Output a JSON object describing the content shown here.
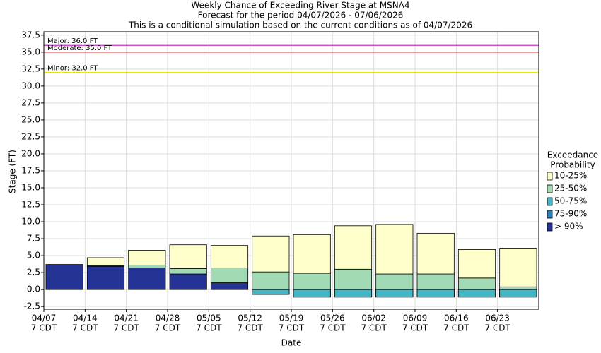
{
  "chart_data": {
    "type": "floating-bar",
    "title": [
      "Weekly Chance of Exceeding River Stage at MSNA4",
      "Forecast for the period 04/07/2026 - 07/06/2026",
      "This is a conditional simulation based on the current conditions as of 04/07/2026"
    ],
    "y_label": "Stage (FT)",
    "x_label": "Date",
    "categories": [
      "04/07",
      "04/14",
      "04/21",
      "04/28",
      "05/05",
      "05/12",
      "05/19",
      "05/26",
      "06/02",
      "06/09",
      "06/16",
      "06/23"
    ],
    "category_sublabels": [
      "7 CDT",
      "7 CDT",
      "7 CDT",
      "7 CDT",
      "7 CDT",
      "7 CDT",
      "7 CDT",
      "7 CDT",
      "7 CDT",
      "7 CDT",
      "7 CDT",
      "7 CDT"
    ],
    "series": [
      {
        "name": "> 90%",
        "color": "#253494",
        "values": [
          3.7,
          3.4,
          3.2,
          2.3,
          1.0,
          -0.7,
          -1.1,
          -1.1,
          -1.1,
          -1.1,
          -1.1,
          -1.1
        ]
      },
      {
        "name": "75-90%",
        "color": "#2c7fb8",
        "values": [
          3.7,
          3.4,
          3.2,
          2.3,
          1.0,
          -0.7,
          -1.1,
          -1.1,
          -1.1,
          -1.1,
          -1.1,
          -1.1
        ]
      },
      {
        "name": "50-75%",
        "color": "#41b6c4",
        "values": [
          3.7,
          3.4,
          3.2,
          2.3,
          1.0,
          -0.7,
          -1.1,
          -1.1,
          -1.1,
          -1.1,
          -1.1,
          -1.1
        ]
      },
      {
        "name": "25-50%",
        "color": "#a1dab4",
        "values": [
          3.7,
          3.5,
          3.6,
          3.1,
          3.2,
          2.6,
          2.4,
          3.0,
          2.3,
          2.3,
          1.7,
          0.4
        ]
      },
      {
        "name": "10-25%",
        "color": "#ffffcc",
        "values": [
          3.7,
          4.7,
          5.8,
          6.6,
          6.5,
          7.9,
          8.1,
          9.4,
          9.6,
          8.3,
          5.9,
          6.1
        ]
      }
    ],
    "legend_title": [
      "Exceedance",
      "Probability"
    ],
    "thresholds": [
      {
        "label": "Major: 36.0 FT",
        "value": 36,
        "color": "#cc33cc"
      },
      {
        "label": "Moderate: 35.0 FT",
        "value": 35,
        "color": "#cc0000"
      },
      {
        "label": "Minor: 32.0 FT",
        "value": 32,
        "color": "#e6e600"
      }
    ],
    "ylim": [
      -2.9,
      38
    ],
    "yticks": [
      -2.5,
      {
        "value": 0,
        "label": "0.0"
      },
      2.5,
      {
        "value": 5,
        "label": "5.0"
      },
      7.5,
      {
        "value": 10,
        "label": "10.0"
      },
      12.5,
      {
        "value": 15,
        "label": "15.0"
      },
      17.5,
      {
        "value": 20,
        "label": "20.0"
      },
      22.5,
      {
        "value": 25,
        "label": "25.0"
      },
      27.5,
      {
        "value": 30,
        "label": "30.0"
      },
      32.5,
      {
        "value": 35,
        "label": "35.0"
      },
      37.5
    ],
    "grid": true
  }
}
